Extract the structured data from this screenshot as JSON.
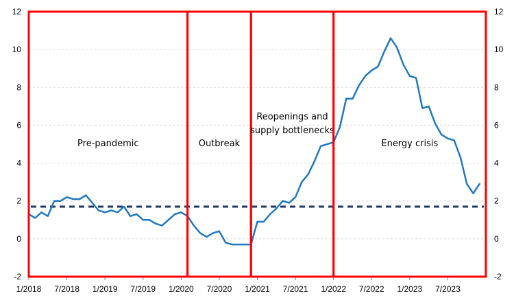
{
  "chart_data": {
    "type": "line",
    "x_tick_labels": [
      "1/2018",
      "7/2018",
      "1/2019",
      "7/2019",
      "1/2020",
      "7/2020",
      "1/2021",
      "7/2021",
      "1/2022",
      "7/2022",
      "1/2023",
      "7/2023"
    ],
    "x_tick_dates": [
      "2018-01",
      "2018-07",
      "2019-01",
      "2019-07",
      "2020-01",
      "2020-07",
      "2021-01",
      "2021-07",
      "2022-01",
      "2022-07",
      "2023-01",
      "2023-07"
    ],
    "xlim": [
      "2018-01",
      "2024-01"
    ],
    "y_tick_labels": [
      "-2",
      "0",
      "2",
      "4",
      "6",
      "8",
      "10",
      "12"
    ],
    "ylim": [
      -2,
      12
    ],
    "secondary_axis": true,
    "grid": true,
    "colors": {
      "series": "#1f78c1",
      "reference": "#1f3864",
      "period_border": "#ff0000"
    },
    "series": [
      {
        "x": [
          "2018-01",
          "2018-02",
          "2018-03",
          "2018-04",
          "2018-05",
          "2018-06",
          "2018-07",
          "2018-08",
          "2018-09",
          "2018-10",
          "2018-11",
          "2018-12",
          "2019-01",
          "2019-02",
          "2019-03",
          "2019-04",
          "2019-05",
          "2019-06",
          "2019-07",
          "2019-08",
          "2019-09",
          "2019-10",
          "2019-11",
          "2019-12",
          "2020-01",
          "2020-02",
          "2020-03",
          "2020-04",
          "2020-05",
          "2020-06",
          "2020-07",
          "2020-08",
          "2020-09",
          "2020-10",
          "2020-11",
          "2020-12",
          "2021-01",
          "2021-02",
          "2021-03",
          "2021-04",
          "2021-05",
          "2021-06",
          "2021-07",
          "2021-08",
          "2021-09",
          "2021-10",
          "2021-11",
          "2021-12",
          "2022-01",
          "2022-02",
          "2022-03",
          "2022-04",
          "2022-05",
          "2022-06",
          "2022-07",
          "2022-08",
          "2022-09",
          "2022-10",
          "2022-11",
          "2022-12",
          "2023-01",
          "2023-02",
          "2023-03",
          "2023-04",
          "2023-05",
          "2023-06",
          "2023-07",
          "2023-08",
          "2023-09",
          "2023-10",
          "2023-11",
          "2023-12"
        ],
        "values": [
          1.3,
          1.1,
          1.4,
          1.2,
          2.0,
          2.0,
          2.2,
          2.1,
          2.1,
          2.3,
          1.9,
          1.5,
          1.4,
          1.5,
          1.4,
          1.7,
          1.2,
          1.3,
          1.0,
          1.0,
          0.8,
          0.7,
          1.0,
          1.3,
          1.4,
          1.2,
          0.7,
          0.3,
          0.1,
          0.3,
          0.4,
          -0.2,
          -0.3,
          -0.3,
          -0.3,
          -0.3,
          0.9,
          0.9,
          1.3,
          1.6,
          2.0,
          1.9,
          2.2,
          3.0,
          3.4,
          4.1,
          4.9,
          5.0,
          5.1,
          5.9,
          7.4,
          7.4,
          8.1,
          8.6,
          8.9,
          9.1,
          9.9,
          10.6,
          10.1,
          9.2,
          8.6,
          8.5,
          6.9,
          7.0,
          6.1,
          5.5,
          5.3,
          5.2,
          4.3,
          2.9,
          2.4,
          2.9
        ]
      }
    ],
    "reference_line": {
      "y": 1.7,
      "style": "dashed"
    },
    "periods": [
      {
        "label": "Pre-pandemic",
        "lines": [
          "Pre-pandemic"
        ],
        "start": "2018-01",
        "end": "2020-02",
        "label_y": 4.9
      },
      {
        "label": "Outbreak",
        "lines": [
          "Outbreak"
        ],
        "start": "2020-02",
        "end": "2020-12",
        "label_y": 4.9
      },
      {
        "label": "Reopenings and supply bottlenecks",
        "lines": [
          "Reopenings and",
          "supply bottlenecks"
        ],
        "start": "2020-12",
        "end": "2022-01",
        "label_y": 6.3
      },
      {
        "label": "Energy crisis",
        "lines": [
          "Energy crisis"
        ],
        "start": "2022-01",
        "end": "2024-01",
        "label_y": 4.9
      }
    ]
  }
}
